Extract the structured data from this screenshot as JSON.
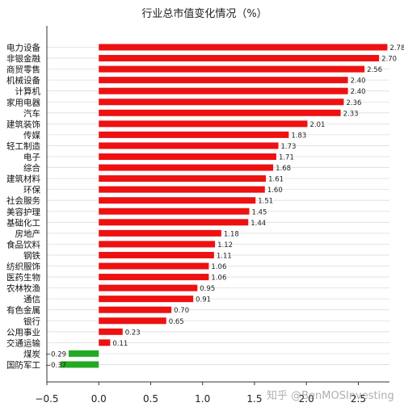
{
  "chart_data": {
    "type": "bar",
    "orientation": "horizontal",
    "title": "行业总市值变化情况（%）",
    "xlabel": "",
    "ylabel": "",
    "xlim": [
      -0.5,
      2.8
    ],
    "xticks": [
      -0.5,
      0.0,
      0.5,
      1.0,
      1.5,
      2.0,
      2.5
    ],
    "xtick_labels": [
      "−0.5",
      "0.0",
      "0.5",
      "1.0",
      "1.5",
      "2.0",
      "2.5"
    ],
    "grid": "horizontal",
    "legend": "none",
    "positive_color": "#ee1111",
    "negative_color": "#22aa22",
    "categories": [
      "电力设备",
      "非银金融",
      "商贸零售",
      "机械设备",
      "计算机",
      "家用电器",
      "汽车",
      "建筑装饰",
      "传媒",
      "轻工制造",
      "电子",
      "综合",
      "建筑材料",
      "环保",
      "社会服务",
      "美容护理",
      "基础化工",
      "房地产",
      "食品饮料",
      "钢铁",
      "纺织服饰",
      "医药生物",
      "农林牧渔",
      "通信",
      "有色金属",
      "银行",
      "公用事业",
      "交通运输",
      "煤炭",
      "国防军工"
    ],
    "values": [
      2.78,
      2.7,
      2.56,
      2.4,
      2.4,
      2.36,
      2.33,
      2.01,
      1.83,
      1.73,
      1.71,
      1.68,
      1.61,
      1.6,
      1.51,
      1.45,
      1.44,
      1.18,
      1.12,
      1.11,
      1.06,
      1.06,
      0.95,
      0.91,
      0.7,
      0.65,
      0.23,
      0.11,
      -0.29,
      -0.37
    ],
    "value_labels": [
      "2.78",
      "2.70",
      "2.56",
      "2.40",
      "2.40",
      "2.36",
      "2.33",
      "2.01",
      "1.83",
      "1.73",
      "1.71",
      "1.68",
      "1.61",
      "1.60",
      "1.51",
      "1.45",
      "1.44",
      "1.18",
      "1.12",
      "1.11",
      "1.06",
      "1.06",
      "0.95",
      "0.91",
      "0.70",
      "0.65",
      "0.23",
      "0.11",
      "−0.29",
      "−0.37"
    ]
  },
  "watermark": "知乎 @BenMOSInvesting"
}
